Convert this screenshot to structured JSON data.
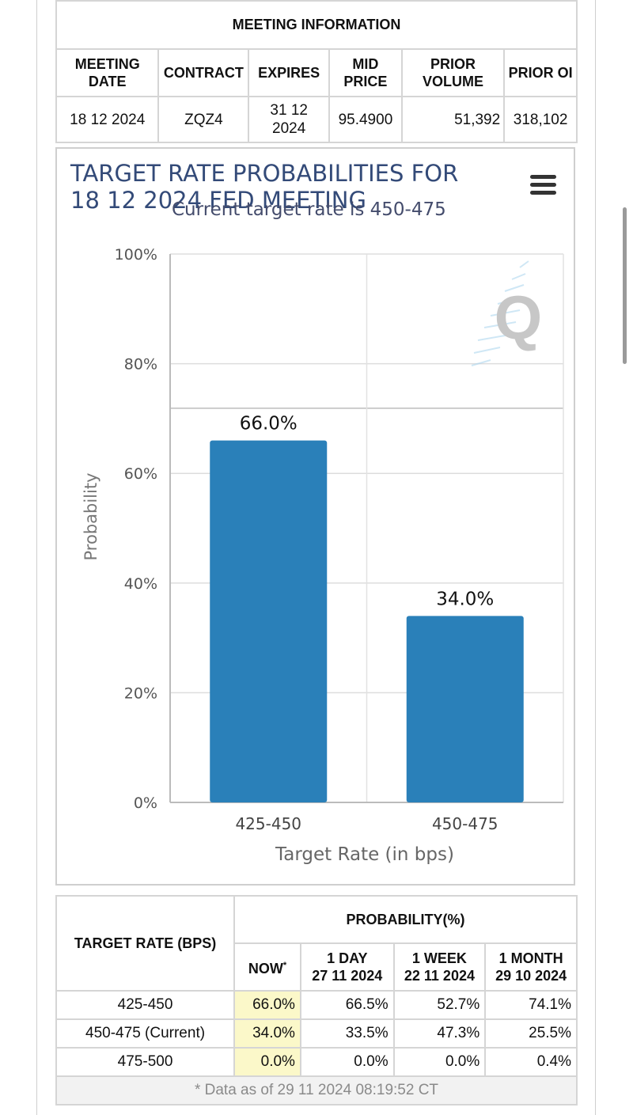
{
  "meeting_info": {
    "title": "MEETING INFORMATION",
    "headers": {
      "meeting_date": "MEETING DATE",
      "contract": "CONTRACT",
      "expires": "EXPIRES",
      "mid_price": "MID PRICE",
      "prior_volume": "PRIOR VOLUME",
      "prior_oi": "PRIOR OI"
    },
    "row": {
      "meeting_date": "18 12 2024",
      "contract": "ZQZ4",
      "expires": "31 12 2024",
      "mid_price": "95.4900",
      "prior_volume": "51,392",
      "prior_oi": "318,102"
    }
  },
  "chart_data": {
    "type": "bar",
    "title": "TARGET RATE PROBABILITIES FOR 18 12 2024 FED MEETING",
    "subtitle": "Current target rate is 450-475",
    "xlabel": "Target Rate (in bps)",
    "ylabel": "Probability",
    "categories": [
      "425-450",
      "450-475"
    ],
    "values": [
      66.0,
      34.0
    ],
    "data_labels": [
      "66.0%",
      "34.0%"
    ],
    "ylim": [
      0,
      100
    ],
    "yticks": [
      "0%",
      "20%",
      "40%",
      "60%",
      "80%",
      "100%"
    ],
    "grid": true,
    "bar_color": "#2a80b9",
    "menu_icon": "hamburger-menu-icon",
    "watermark_icon": "quikstrike-q-logo"
  },
  "prob_table": {
    "rate_header": "TARGET RATE (BPS)",
    "prob_header": "PROBABILITY(%)",
    "now_label": "NOW",
    "now_mark": "*",
    "cols": [
      {
        "label": "1 DAY",
        "date": "27 11 2024"
      },
      {
        "label": "1 WEEK",
        "date": "22 11 2024"
      },
      {
        "label": "1 MONTH",
        "date": "29 10 2024"
      }
    ],
    "rows": [
      {
        "rate": "425-450",
        "now": "66.0%",
        "day": "66.5%",
        "week": "52.7%",
        "month": "74.1%"
      },
      {
        "rate": "450-475 (Current)",
        "now": "34.0%",
        "day": "33.5%",
        "week": "47.3%",
        "month": "25.5%"
      },
      {
        "rate": "475-500",
        "now": "0.0%",
        "day": "0.0%",
        "week": "0.0%",
        "month": "0.4%"
      }
    ],
    "footnote": "* Data as of 29 11 2024 08:19:52 CT"
  }
}
